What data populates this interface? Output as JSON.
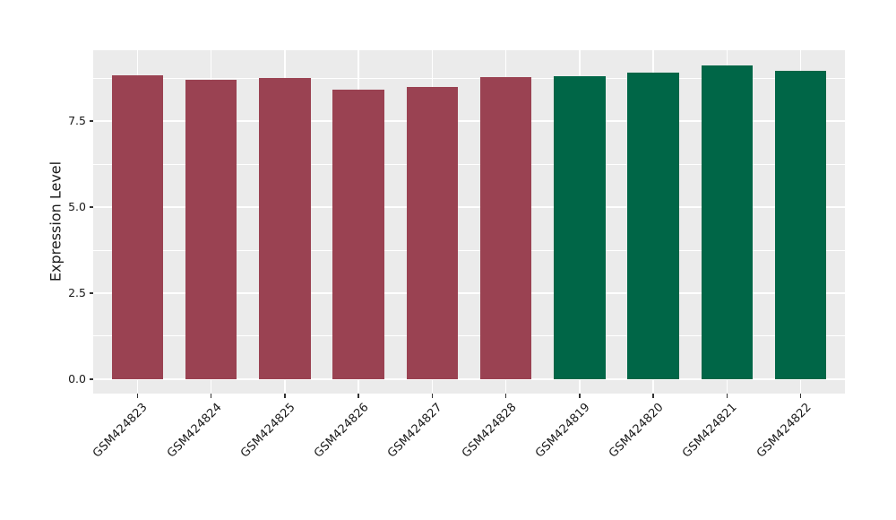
{
  "figure": {
    "background_color": "#ffffff",
    "panel_background_color": "#ebebeb",
    "gridline_color": "#ffffff",
    "tick_mark_color": "#333333",
    "text_color": "#1a1a1a",
    "bar_color_left_group": "#9a4252",
    "bar_color_right_group": "#006647"
  },
  "chart_data": {
    "type": "bar",
    "title": "",
    "xlabel": "",
    "ylabel": "Expression Level",
    "categories": [
      "GSM424823",
      "GSM424824",
      "GSM424825",
      "GSM424826",
      "GSM424827",
      "GSM424828",
      "GSM424819",
      "GSM424820",
      "GSM424821",
      "GSM424822"
    ],
    "values": [
      8.83,
      8.7,
      8.75,
      8.41,
      8.49,
      8.78,
      8.8,
      8.91,
      9.11,
      8.96
    ],
    "bar_colors": [
      "#9a4252",
      "#9a4252",
      "#9a4252",
      "#9a4252",
      "#9a4252",
      "#9a4252",
      "#006647",
      "#006647",
      "#006647",
      "#006647"
    ],
    "yticks": [
      0,
      2.5,
      5,
      7.5
    ],
    "ytick_labels": [
      "0.0",
      "2.5",
      "5.0",
      "7.5"
    ],
    "yticks_minor": [
      1.25,
      3.75,
      6.25,
      8.75
    ],
    "ylim": [
      -0.42,
      9.56
    ],
    "xtick_rotation_deg": 45,
    "bar_width_fraction": 0.7,
    "grid": "on",
    "legend": "none"
  }
}
